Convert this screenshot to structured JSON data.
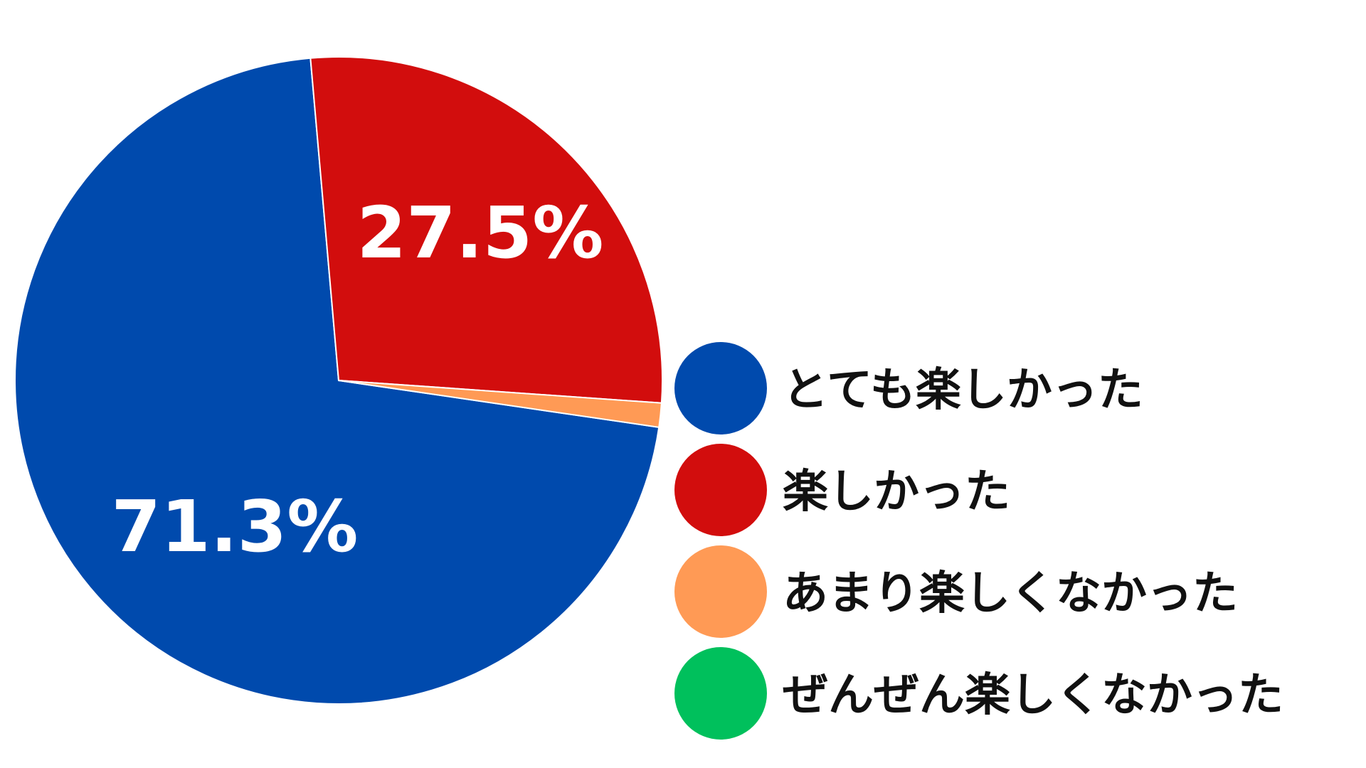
{
  "chart_data": {
    "type": "pie",
    "categories": [
      "とても楽しかった",
      "楽しかった",
      "あまり楽しくなかった",
      "ぜんぜん楽しくなかった"
    ],
    "values": [
      71.3,
      27.5,
      1.2,
      0
    ],
    "colors": [
      "#004aad",
      "#d20d0d",
      "#ff9a55",
      "#00c05c"
    ],
    "data_labels": [
      "71.3%",
      "27.5%",
      "",
      ""
    ],
    "legend_position": "right"
  }
}
